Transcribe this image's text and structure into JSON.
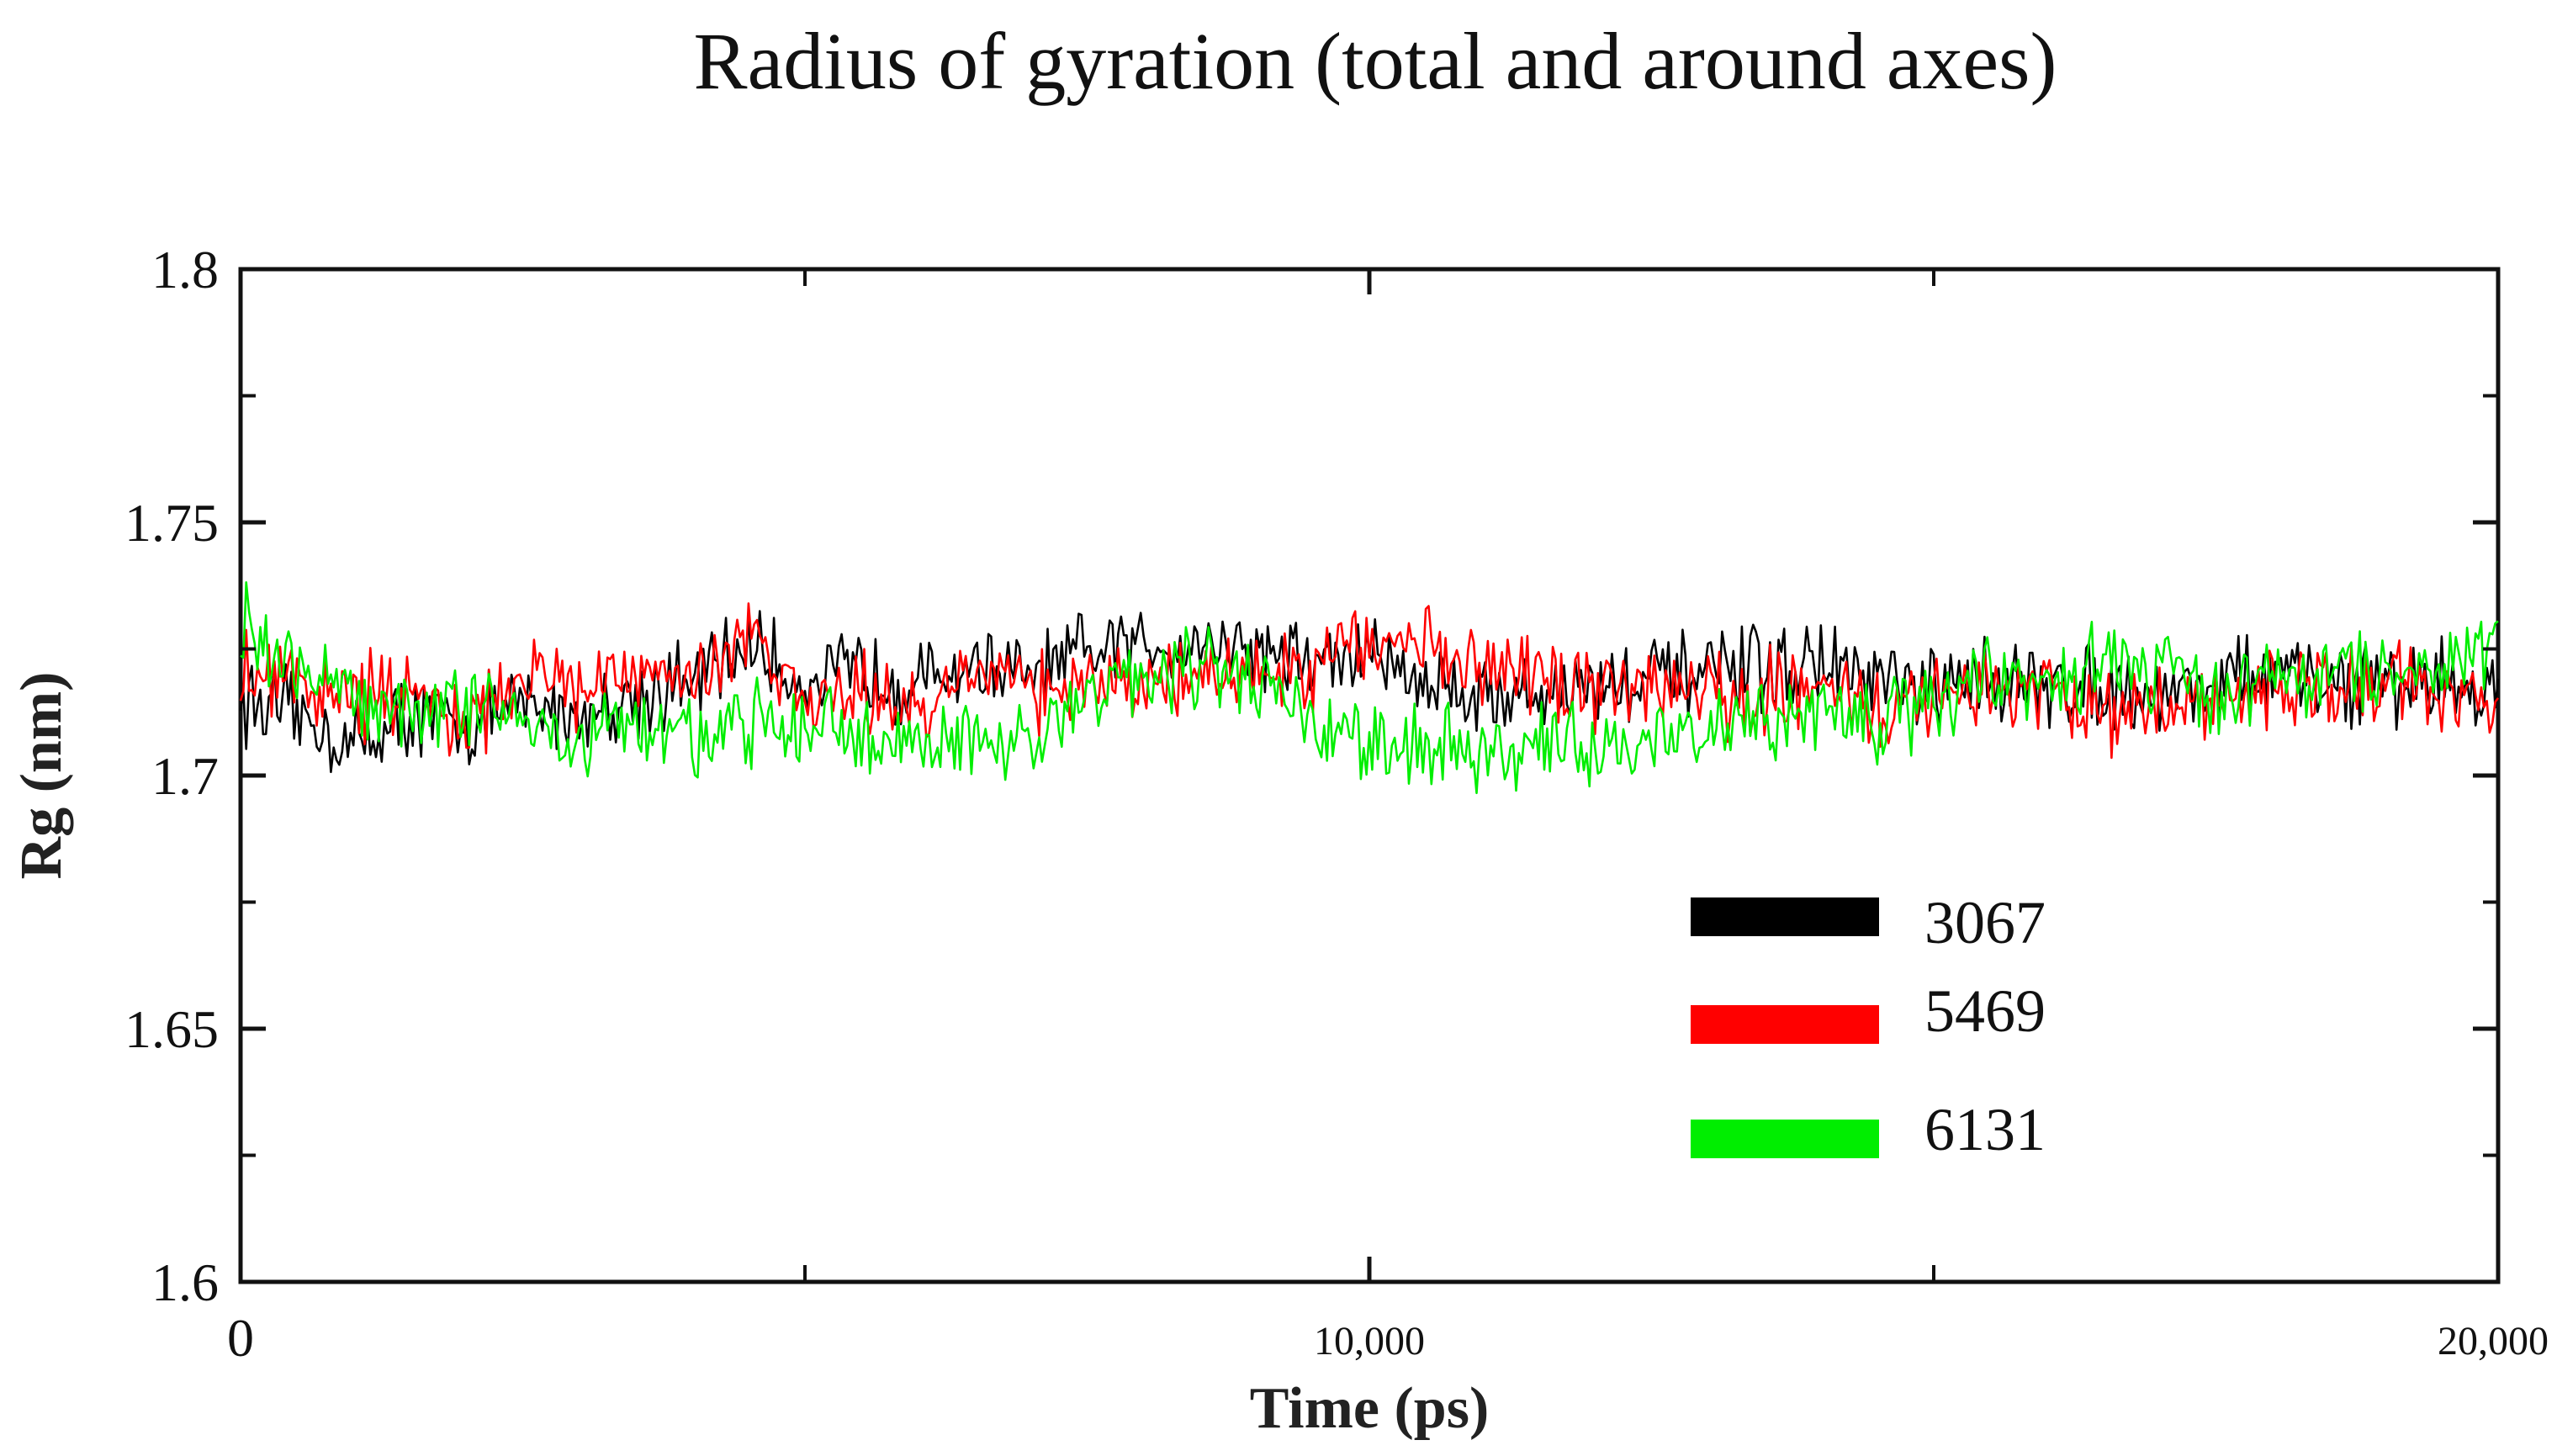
{
  "chart_data": {
    "type": "line",
    "title": "Radius of gyration (total and around axes)",
    "xlabel": "Time (ps)",
    "ylabel": "Rg (nm)",
    "xlim": [
      0,
      20000
    ],
    "ylim": [
      1.6,
      1.8
    ],
    "x_ticks": [
      {
        "value": 0,
        "label": "0"
      },
      {
        "value": 10000,
        "label": "10,000"
      },
      {
        "value": 20000,
        "label": "20,000"
      }
    ],
    "x_minor_ticks": [
      5000,
      15000
    ],
    "y_ticks": [
      {
        "value": 1.6,
        "label": "1.6"
      },
      {
        "value": 1.65,
        "label": "1.65"
      },
      {
        "value": 1.7,
        "label": "1.7"
      },
      {
        "value": 1.75,
        "label": "1.75"
      },
      {
        "value": 1.8,
        "label": "1.8"
      }
    ],
    "y_minor_ticks": [
      1.625,
      1.675,
      1.725,
      1.775
    ],
    "grid": false,
    "legend_position": "lower-right",
    "x": [
      0,
      500,
      1000,
      1500,
      2000,
      2500,
      3000,
      3500,
      4000,
      4500,
      5000,
      5500,
      6000,
      6500,
      7000,
      7500,
      8000,
      8500,
      9000,
      9500,
      10000,
      10500,
      11000,
      11500,
      12000,
      12500,
      13000,
      13500,
      14000,
      14500,
      15000,
      15500,
      16000,
      16500,
      17000,
      17500,
      18000,
      18500,
      19000,
      19500,
      20000
    ],
    "series": [
      {
        "name": "3067",
        "color": "#000000",
        "values": [
          1.715,
          1.712,
          1.706,
          1.712,
          1.71,
          1.714,
          1.712,
          1.716,
          1.718,
          1.726,
          1.718,
          1.721,
          1.718,
          1.722,
          1.719,
          1.724,
          1.726,
          1.727,
          1.725,
          1.722,
          1.724,
          1.719,
          1.716,
          1.716,
          1.718,
          1.719,
          1.72,
          1.721,
          1.722,
          1.718,
          1.716,
          1.72,
          1.717,
          1.718,
          1.716,
          1.719,
          1.72,
          1.718,
          1.718,
          1.719,
          1.716
        ]
      },
      {
        "name": "5469",
        "color": "#ff0000",
        "values": [
          1.719,
          1.718,
          1.716,
          1.715,
          1.709,
          1.718,
          1.718,
          1.72,
          1.72,
          1.728,
          1.716,
          1.716,
          1.713,
          1.72,
          1.716,
          1.718,
          1.72,
          1.718,
          1.722,
          1.72,
          1.727,
          1.726,
          1.72,
          1.718,
          1.716,
          1.717,
          1.716,
          1.716,
          1.718,
          1.713,
          1.716,
          1.718,
          1.716,
          1.712,
          1.713,
          1.716,
          1.718,
          1.716,
          1.718,
          1.716,
          1.712
        ]
      },
      {
        "name": "6131",
        "color": "#00ee00",
        "values": [
          1.73,
          1.72,
          1.716,
          1.712,
          1.714,
          1.711,
          1.708,
          1.71,
          1.708,
          1.71,
          1.711,
          1.708,
          1.708,
          1.706,
          1.706,
          1.716,
          1.72,
          1.722,
          1.72,
          1.712,
          1.708,
          1.706,
          1.705,
          1.707,
          1.705,
          1.708,
          1.71,
          1.711,
          1.712,
          1.71,
          1.716,
          1.72,
          1.718,
          1.722,
          1.72,
          1.716,
          1.718,
          1.72,
          1.72,
          1.72,
          1.727
        ]
      }
    ]
  }
}
